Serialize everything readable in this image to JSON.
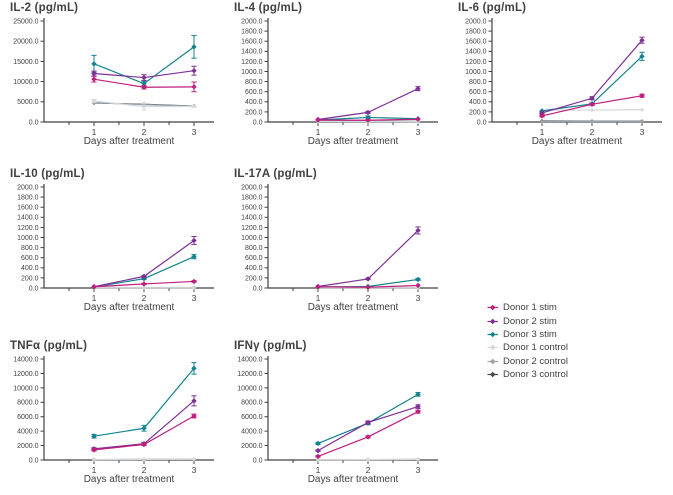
{
  "xlabel": "Days after treatment",
  "legend": {
    "items": [
      {
        "label": "Donor 1 stim",
        "color": "#bf1e7c"
      },
      {
        "label": "Donor 2 stim",
        "color": "#7e3096"
      },
      {
        "label": "Donor 3 stim",
        "color": "#11838f"
      },
      {
        "label": "Donor 1 control",
        "color": "#d5d8da"
      },
      {
        "label": "Donor 2 control",
        "color": "#9ba1a5"
      },
      {
        "label": "Donor 3 control",
        "color": "#45494d"
      }
    ]
  },
  "colors": {
    "axis": "#414042",
    "text": "#414042",
    "background": "#ffffff"
  },
  "chart_data": [
    {
      "type": "line",
      "title": "IL-2 (pg/mL)",
      "xlabel": "Days after treatment",
      "x": [
        1,
        2,
        3
      ],
      "ylim": [
        0,
        25000
      ],
      "ystep": 5000,
      "grid": false,
      "legend_position": "shared-right",
      "series": [
        {
          "name": "Donor 1 stim",
          "values": [
            10600,
            8600,
            8700
          ],
          "err": [
            700,
            400,
            1200
          ]
        },
        {
          "name": "Donor 2 stim",
          "values": [
            12000,
            11000,
            12700
          ],
          "err": [
            600,
            700,
            1100
          ]
        },
        {
          "name": "Donor 3 stim",
          "values": [
            14400,
            9500,
            18600
          ],
          "err": [
            2100,
            600,
            2800
          ]
        },
        {
          "name": "Donor 1 control",
          "values": [
            5200,
            3800,
            3850
          ],
          "err": [
            400,
            800,
            200
          ]
        },
        {
          "name": "Donor 2 control",
          "values": [
            4800,
            4300,
            3900
          ],
          "err": [
            0,
            0,
            0
          ]
        },
        {
          "name": "Donor 3 control",
          "values": [
            4700,
            4400,
            3950
          ],
          "err": [
            0,
            0,
            0
          ]
        }
      ]
    },
    {
      "type": "line",
      "title": "IL-4 (pg/mL)",
      "xlabel": "Days after treatment",
      "x": [
        1,
        2,
        3
      ],
      "ylim": [
        0,
        2000
      ],
      "ystep": 200,
      "grid": false,
      "legend_position": "shared-right",
      "series": [
        {
          "name": "Donor 1 stim",
          "values": [
            40,
            35,
            55
          ],
          "err": [
            0,
            0,
            0
          ]
        },
        {
          "name": "Donor 2 stim",
          "values": [
            50,
            190,
            660
          ],
          "err": [
            0,
            20,
            40
          ]
        },
        {
          "name": "Donor 3 stim",
          "values": [
            40,
            90,
            65
          ],
          "err": [
            0,
            30,
            0
          ]
        },
        {
          "name": "Donor 1 control",
          "values": [
            10,
            8,
            8
          ],
          "err": [
            0,
            0,
            0
          ]
        },
        {
          "name": "Donor 2 control",
          "values": [
            12,
            10,
            10
          ],
          "err": [
            0,
            0,
            0
          ]
        },
        {
          "name": "Donor 3 control",
          "values": [
            15,
            12,
            12
          ],
          "err": [
            0,
            0,
            0
          ]
        }
      ]
    },
    {
      "type": "line",
      "title": "IL-6 (pg/mL)",
      "xlabel": "Days after treatment",
      "x": [
        1,
        2,
        3
      ],
      "ylim": [
        0,
        2000
      ],
      "ystep": 200,
      "grid": false,
      "legend_position": "shared-right",
      "series": [
        {
          "name": "Donor 1 stim",
          "values": [
            120,
            350,
            520
          ],
          "err": [
            20,
            20,
            30
          ]
        },
        {
          "name": "Donor 2 stim",
          "values": [
            180,
            470,
            1620
          ],
          "err": [
            20,
            30,
            60
          ]
        },
        {
          "name": "Donor 3 stim",
          "values": [
            220,
            360,
            1300
          ],
          "err": [
            0,
            20,
            80
          ]
        },
        {
          "name": "Donor 1 control",
          "values": [
            230,
            238,
            240
          ],
          "err": [
            0,
            0,
            0
          ]
        },
        {
          "name": "Donor 2 control",
          "values": [
            10,
            10,
            10
          ],
          "err": [
            0,
            0,
            0
          ]
        },
        {
          "name": "Donor 3 control",
          "values": [
            20,
            15,
            15
          ],
          "err": [
            0,
            0,
            0
          ]
        }
      ]
    },
    {
      "type": "line",
      "title": "IL-10 (pg/mL)",
      "xlabel": "Days after treatment",
      "x": [
        1,
        2,
        3
      ],
      "ylim": [
        0,
        2000
      ],
      "ystep": 200,
      "grid": false,
      "legend_position": "shared-right",
      "series": [
        {
          "name": "Donor 1 stim",
          "values": [
            25,
            80,
            130
          ],
          "err": [
            0,
            10,
            15
          ]
        },
        {
          "name": "Donor 2 stim",
          "values": [
            25,
            230,
            940
          ],
          "err": [
            0,
            20,
            80
          ]
        },
        {
          "name": "Donor 3 stim",
          "values": [
            20,
            185,
            620
          ],
          "err": [
            0,
            15,
            40
          ]
        },
        {
          "name": "Donor 1 control",
          "values": [
            5,
            5,
            5
          ],
          "err": [
            0,
            0,
            0
          ]
        },
        {
          "name": "Donor 2 control",
          "values": [
            8,
            6,
            6
          ],
          "err": [
            0,
            0,
            0
          ]
        },
        {
          "name": "Donor 3 control",
          "values": [
            10,
            8,
            8
          ],
          "err": [
            0,
            0,
            0
          ]
        }
      ]
    },
    {
      "type": "line",
      "title": "IL-17A (pg/mL)",
      "xlabel": "Days after treatment",
      "x": [
        1,
        2,
        3
      ],
      "ylim": [
        0,
        2000
      ],
      "ystep": 200,
      "grid": false,
      "legend_position": "shared-right",
      "series": [
        {
          "name": "Donor 1 stim",
          "values": [
            25,
            15,
            50
          ],
          "err": [
            0,
            0,
            0
          ]
        },
        {
          "name": "Donor 2 stim",
          "values": [
            30,
            180,
            1140
          ],
          "err": [
            0,
            15,
            70
          ]
        },
        {
          "name": "Donor 3 stim",
          "values": [
            20,
            30,
            170
          ],
          "err": [
            0,
            0,
            20
          ]
        },
        {
          "name": "Donor 1 control",
          "values": [
            5,
            5,
            5
          ],
          "err": [
            0,
            0,
            0
          ]
        },
        {
          "name": "Donor 2 control",
          "values": [
            8,
            6,
            6
          ],
          "err": [
            0,
            0,
            0
          ]
        },
        {
          "name": "Donor 3 control",
          "values": [
            10,
            8,
            8
          ],
          "err": [
            0,
            0,
            0
          ]
        }
      ]
    },
    {
      "type": "line",
      "title": "TNFα (pg/mL)",
      "xlabel": "Days after treatment",
      "x": [
        1,
        2,
        3
      ],
      "ylim": [
        0,
        14000
      ],
      "ystep": 2000,
      "grid": false,
      "legend_position": "shared-right",
      "series": [
        {
          "name": "Donor 1 stim",
          "values": [
            1400,
            2150,
            6100
          ],
          "err": [
            150,
            150,
            250
          ]
        },
        {
          "name": "Donor 2 stim",
          "values": [
            1550,
            2250,
            8200
          ],
          "err": [
            150,
            200,
            700
          ]
        },
        {
          "name": "Donor 3 stim",
          "values": [
            3300,
            4400,
            12700
          ],
          "err": [
            250,
            400,
            800
          ]
        },
        {
          "name": "Donor 1 control",
          "values": [
            60,
            80,
            100
          ],
          "err": [
            0,
            0,
            0
          ]
        },
        {
          "name": "Donor 2 control",
          "values": [
            50,
            70,
            90
          ],
          "err": [
            0,
            0,
            0
          ]
        },
        {
          "name": "Donor 3 control",
          "values": [
            55,
            75,
            95
          ],
          "err": [
            0,
            0,
            0
          ]
        }
      ]
    },
    {
      "type": "line",
      "title": "IFNγ (pg/mL)",
      "xlabel": "Days after treatment",
      "x": [
        1,
        2,
        3
      ],
      "ylim": [
        0,
        14000
      ],
      "ystep": 2000,
      "grid": false,
      "legend_position": "shared-right",
      "series": [
        {
          "name": "Donor 1 stim",
          "values": [
            500,
            3200,
            6700
          ],
          "err": [
            100,
            150,
            200
          ]
        },
        {
          "name": "Donor 2 stim",
          "values": [
            1300,
            5200,
            7400
          ],
          "err": [
            100,
            200,
            250
          ]
        },
        {
          "name": "Donor 3 stim",
          "values": [
            2300,
            5100,
            9100
          ],
          "err": [
            150,
            200,
            250
          ]
        },
        {
          "name": "Donor 1 control",
          "values": [
            40,
            60,
            80
          ],
          "err": [
            0,
            0,
            0
          ]
        },
        {
          "name": "Donor 2 control",
          "values": [
            35,
            55,
            75
          ],
          "err": [
            0,
            0,
            0
          ]
        },
        {
          "name": "Donor 3 control",
          "values": [
            38,
            58,
            78
          ],
          "err": [
            0,
            0,
            0
          ]
        }
      ]
    }
  ]
}
